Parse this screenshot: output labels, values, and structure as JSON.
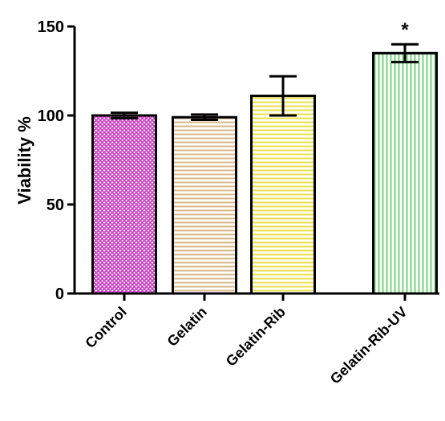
{
  "chart_data": {
    "type": "bar",
    "title": "",
    "xlabel": "",
    "ylabel": "Viability %",
    "ylim": [
      0,
      150
    ],
    "yticks": [
      0,
      50,
      100,
      150
    ],
    "grid": false,
    "categories": [
      "Control",
      "Gelatin",
      "Gelatin-Rib",
      "Gelatin-Rib-UV"
    ],
    "values": [
      100,
      99,
      111,
      135
    ],
    "errors": [
      1.5,
      1.5,
      11,
      5
    ],
    "annotations": [
      "",
      "",
      "",
      "*"
    ],
    "colors": {
      "Control": "#c83fc0",
      "Gelatin": "#d8b88a",
      "Gelatin-Rib": "#e9e24a",
      "Gelatin-Rib-UV": "#79d27d"
    },
    "patterns": {
      "Control": "crosshatch",
      "Gelatin": "horizontal-lines",
      "Gelatin-Rib": "horizontal-lines",
      "Gelatin-Rib-UV": "vertical-lines"
    }
  }
}
